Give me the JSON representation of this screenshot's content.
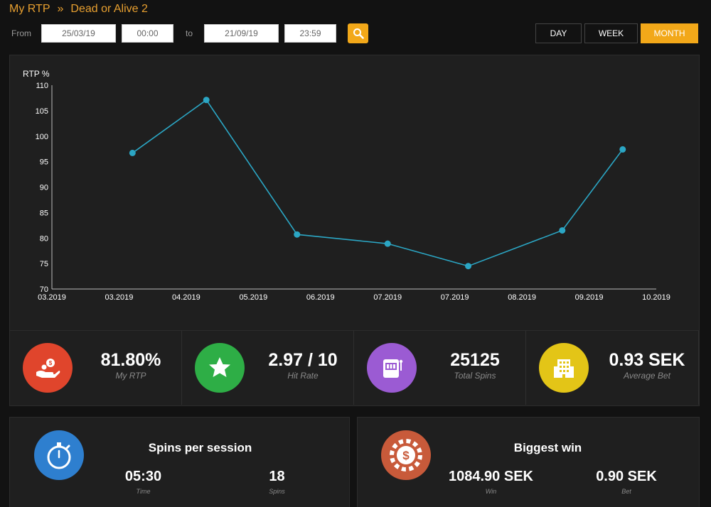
{
  "breadcrumb": {
    "parent": "My RTP",
    "separator": "»",
    "current": "Dead or Alive 2"
  },
  "filter": {
    "from_label": "From",
    "to_label": "to",
    "from_date": "25/03/19",
    "from_time": "00:00",
    "to_date": "21/09/19",
    "to_time": "23:59"
  },
  "periods": [
    {
      "label": "DAY",
      "active": false
    },
    {
      "label": "WEEK",
      "active": false
    },
    {
      "label": "MONTH",
      "active": true
    }
  ],
  "chart_data": {
    "type": "line",
    "title": "",
    "ylabel": "RTP %",
    "xlabel": "",
    "ylim": [
      70,
      110
    ],
    "y_ticks": [
      70,
      75,
      80,
      85,
      90,
      95,
      100,
      105,
      110
    ],
    "x_tick_labels": [
      "03.2019",
      "03.2019",
      "04.2019",
      "05.2019",
      "06.2019",
      "07.2019",
      "07.2019",
      "08.2019",
      "09.2019",
      "10.2019"
    ],
    "points": [
      {
        "x": 1.2,
        "y": 96.7
      },
      {
        "x": 2.3,
        "y": 107.1
      },
      {
        "x": 3.65,
        "y": 80.7
      },
      {
        "x": 5.0,
        "y": 78.9
      },
      {
        "x": 6.2,
        "y": 74.5
      },
      {
        "x": 7.6,
        "y": 81.5
      },
      {
        "x": 8.5,
        "y": 97.4
      }
    ],
    "grid": false,
    "line_color": "#2ba6c4"
  },
  "stats": [
    {
      "value": "81.80%",
      "caption": "My RTP",
      "icon": "hand-money-icon",
      "color": "#e0452c"
    },
    {
      "value": "2.97 / 10",
      "caption": "Hit Rate",
      "icon": "star-icon",
      "color": "#2eae46"
    },
    {
      "value": "25125",
      "caption": "Total Spins",
      "icon": "slot-machine-icon",
      "color": "#9b5bd3"
    },
    {
      "value": "0.93 SEK",
      "caption": "Average Bet",
      "icon": "building-icon",
      "color": "#e3c517"
    }
  ],
  "session": {
    "title": "Spins per session",
    "time_value": "05:30",
    "time_caption": "Time",
    "spins_value": "18",
    "spins_caption": "Spins",
    "icon": "stopwatch-icon",
    "color": "#2e7fcf"
  },
  "biggest": {
    "title": "Biggest win",
    "win_value": "1084.90 SEK",
    "win_caption": "Win",
    "bet_value": "0.90 SEK",
    "bet_caption": "Bet",
    "icon": "casino-chip-icon",
    "color": "#c85a3a"
  }
}
